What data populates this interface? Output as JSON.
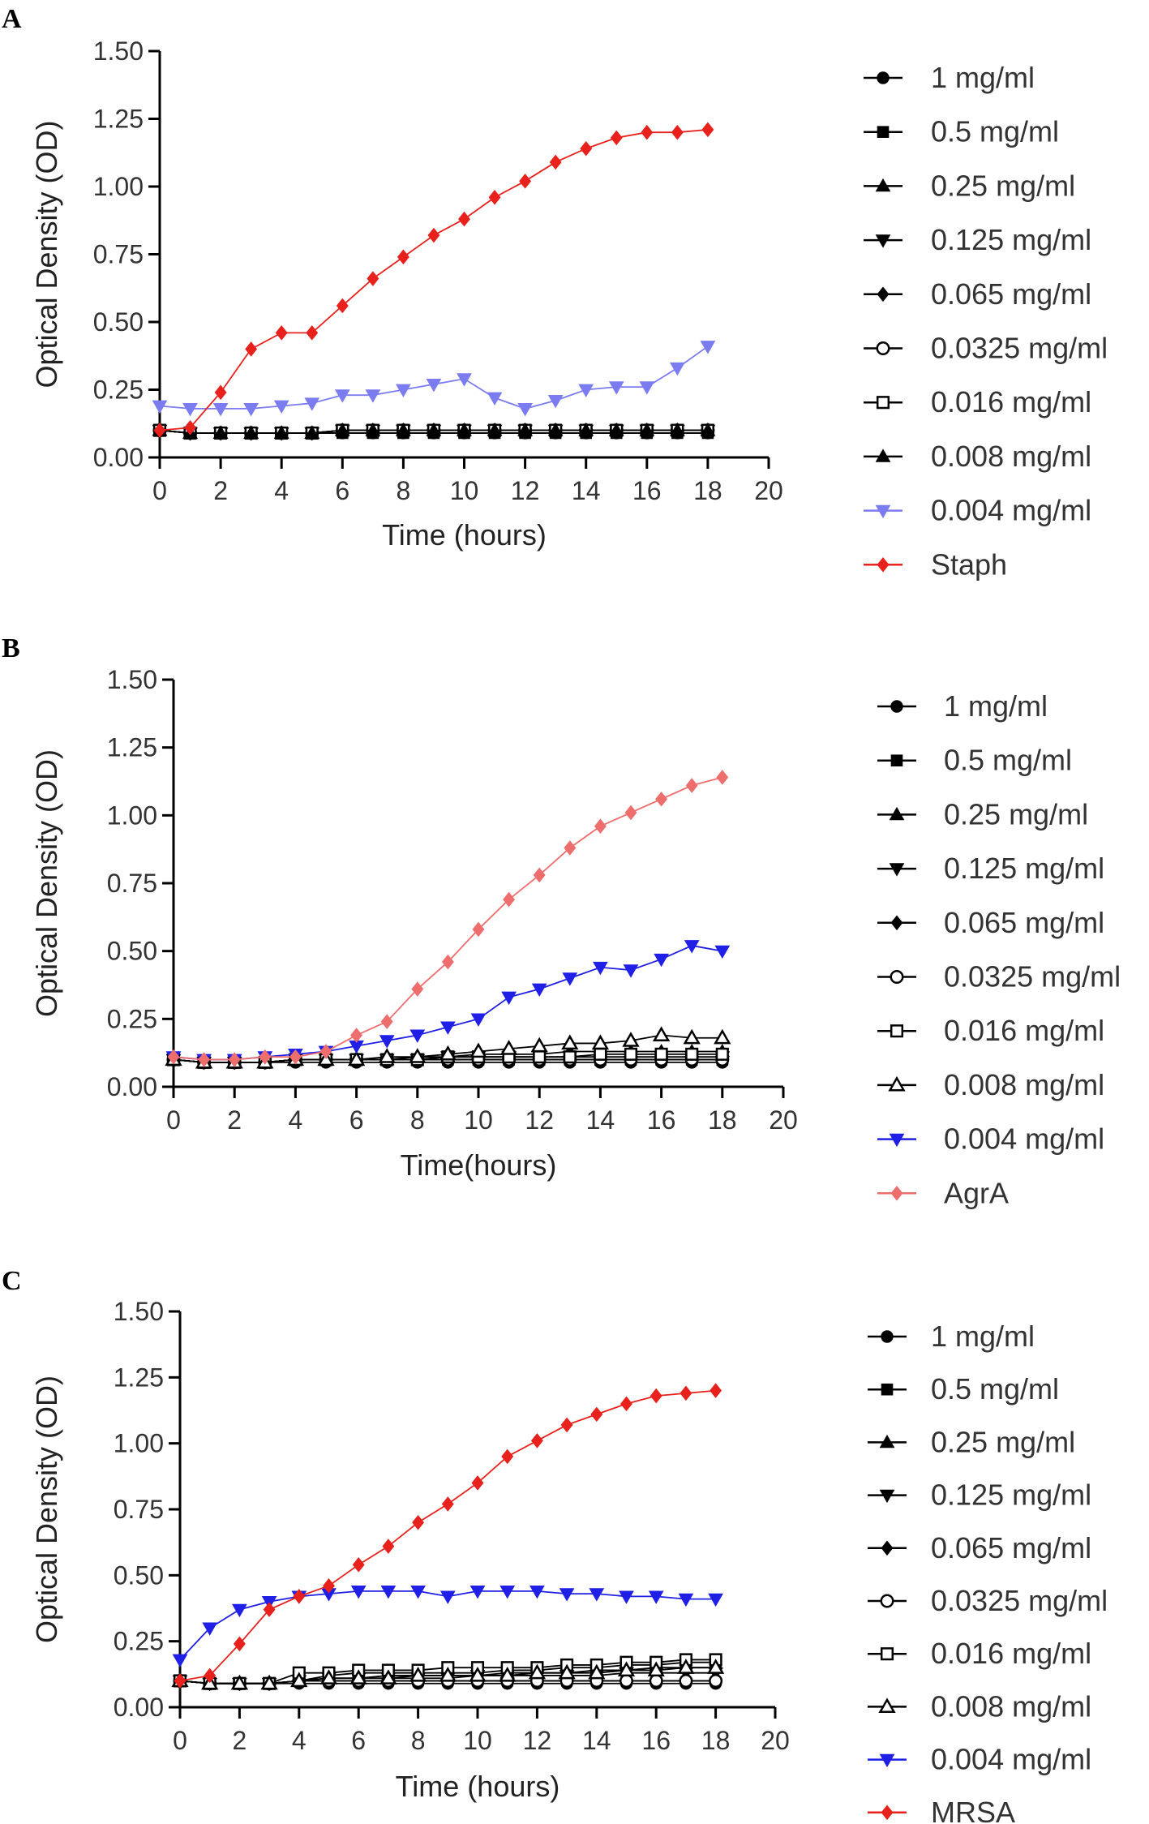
{
  "chart_data": [
    {
      "type": "line",
      "panel": "A",
      "xlabel": "Time (hours)",
      "ylabel": "Optical Density (OD)",
      "xlim": [
        0,
        20
      ],
      "ylim": [
        0,
        1.5
      ],
      "xticks": [
        "0",
        "2",
        "4",
        "6",
        "8",
        "10",
        "12",
        "14",
        "16",
        "18",
        "20"
      ],
      "yticks": [
        "0.00",
        "0.25",
        "0.50",
        "0.75",
        "1.00",
        "1.25",
        "1.50"
      ],
      "x": [
        0,
        1,
        2,
        3,
        4,
        5,
        6,
        7,
        8,
        9,
        10,
        11,
        12,
        13,
        14,
        15,
        16,
        17,
        18
      ],
      "series": [
        {
          "name": "1 mg/ml",
          "marker": "circle",
          "color": "#000000",
          "values": [
            0.1,
            0.09,
            0.09,
            0.09,
            0.09,
            0.09,
            0.09,
            0.09,
            0.09,
            0.09,
            0.09,
            0.09,
            0.09,
            0.09,
            0.09,
            0.09,
            0.09,
            0.09,
            0.09
          ]
        },
        {
          "name": "0.5 mg/ml",
          "marker": "square",
          "color": "#000000",
          "values": [
            0.1,
            0.09,
            0.09,
            0.09,
            0.09,
            0.09,
            0.09,
            0.09,
            0.09,
            0.09,
            0.09,
            0.09,
            0.09,
            0.09,
            0.09,
            0.09,
            0.09,
            0.09,
            0.09
          ]
        },
        {
          "name": "0.25 mg/ml",
          "marker": "triangle-up",
          "color": "#000000",
          "values": [
            0.1,
            0.09,
            0.09,
            0.09,
            0.09,
            0.09,
            0.1,
            0.1,
            0.1,
            0.1,
            0.1,
            0.1,
            0.1,
            0.1,
            0.1,
            0.1,
            0.1,
            0.1,
            0.1
          ]
        },
        {
          "name": "0.125 mg/ml",
          "marker": "triangle-down",
          "color": "#000000",
          "values": [
            0.1,
            0.09,
            0.09,
            0.09,
            0.09,
            0.09,
            0.1,
            0.1,
            0.1,
            0.1,
            0.1,
            0.1,
            0.1,
            0.1,
            0.1,
            0.1,
            0.1,
            0.1,
            0.1
          ]
        },
        {
          "name": "0.065 mg/ml",
          "marker": "diamond",
          "color": "#000000",
          "values": [
            0.1,
            0.09,
            0.09,
            0.09,
            0.09,
            0.09,
            0.1,
            0.1,
            0.1,
            0.1,
            0.1,
            0.1,
            0.1,
            0.1,
            0.1,
            0.1,
            0.1,
            0.1,
            0.1
          ]
        },
        {
          "name": "0.0325 mg/ml",
          "marker": "circle-open",
          "color": "#000000",
          "values": [
            0.1,
            0.09,
            0.09,
            0.09,
            0.09,
            0.09,
            0.1,
            0.1,
            0.1,
            0.1,
            0.1,
            0.1,
            0.1,
            0.1,
            0.1,
            0.1,
            0.1,
            0.1,
            0.1
          ]
        },
        {
          "name": "0.016 mg/ml",
          "marker": "square-open",
          "color": "#000000",
          "values": [
            0.1,
            0.09,
            0.09,
            0.09,
            0.09,
            0.09,
            0.1,
            0.1,
            0.1,
            0.1,
            0.1,
            0.1,
            0.1,
            0.1,
            0.1,
            0.1,
            0.1,
            0.1,
            0.1
          ]
        },
        {
          "name": "0.008 mg/ml",
          "marker": "triangle-up",
          "color": "#000000",
          "values": [
            0.1,
            0.09,
            0.09,
            0.09,
            0.09,
            0.09,
            0.1,
            0.1,
            0.1,
            0.1,
            0.1,
            0.1,
            0.1,
            0.1,
            0.1,
            0.1,
            0.1,
            0.1,
            0.1
          ]
        },
        {
          "name": "0.004 mg/ml",
          "marker": "triangle-down",
          "color": "#7b7cf0",
          "values": [
            0.19,
            0.18,
            0.18,
            0.18,
            0.19,
            0.2,
            0.23,
            0.23,
            0.25,
            0.27,
            0.29,
            0.22,
            0.18,
            0.21,
            0.25,
            0.26,
            0.26,
            0.33,
            0.41
          ]
        },
        {
          "name": "Staph",
          "marker": "diamond",
          "color": "#e8211d",
          "values": [
            0.1,
            0.11,
            0.24,
            0.4,
            0.46,
            0.46,
            0.56,
            0.66,
            0.74,
            0.82,
            0.88,
            0.96,
            1.02,
            1.09,
            1.14,
            1.18,
            1.2,
            1.2,
            1.21
          ]
        }
      ]
    },
    {
      "type": "line",
      "panel": "B",
      "xlabel": "Time(hours)",
      "ylabel": "Optical Density (OD)",
      "xlim": [
        0,
        20
      ],
      "ylim": [
        0,
        1.5
      ],
      "xticks": [
        "0",
        "2",
        "4",
        "6",
        "8",
        "10",
        "12",
        "14",
        "16",
        "18",
        "20"
      ],
      "yticks": [
        "0.00",
        "0.25",
        "0.50",
        "0.75",
        "1.00",
        "1.25",
        "1.50"
      ],
      "x": [
        0,
        1,
        2,
        3,
        4,
        5,
        6,
        7,
        8,
        9,
        10,
        11,
        12,
        13,
        14,
        15,
        16,
        17,
        18
      ],
      "series": [
        {
          "name": "1 mg/ml",
          "marker": "circle",
          "color": "#000000",
          "values": [
            0.1,
            0.09,
            0.09,
            0.09,
            0.09,
            0.09,
            0.09,
            0.09,
            0.09,
            0.09,
            0.09,
            0.09,
            0.09,
            0.09,
            0.09,
            0.09,
            0.09,
            0.09,
            0.09
          ]
        },
        {
          "name": "0.5 mg/ml",
          "marker": "square",
          "color": "#000000",
          "values": [
            0.1,
            0.09,
            0.09,
            0.09,
            0.1,
            0.1,
            0.1,
            0.1,
            0.1,
            0.1,
            0.1,
            0.1,
            0.1,
            0.1,
            0.1,
            0.1,
            0.1,
            0.1,
            0.1
          ]
        },
        {
          "name": "0.25 mg/ml",
          "marker": "triangle-up",
          "color": "#000000",
          "values": [
            0.1,
            0.09,
            0.09,
            0.09,
            0.1,
            0.1,
            0.1,
            0.1,
            0.11,
            0.11,
            0.12,
            0.12,
            0.12,
            0.13,
            0.13,
            0.13,
            0.13,
            0.13,
            0.13
          ]
        },
        {
          "name": "0.125 mg/ml",
          "marker": "triangle-down",
          "color": "#000000",
          "values": [
            0.1,
            0.09,
            0.09,
            0.09,
            0.1,
            0.1,
            0.1,
            0.1,
            0.1,
            0.11,
            0.11,
            0.11,
            0.11,
            0.11,
            0.11,
            0.11,
            0.11,
            0.11,
            0.11
          ]
        },
        {
          "name": "0.065 mg/ml",
          "marker": "diamond",
          "color": "#000000",
          "values": [
            0.1,
            0.09,
            0.09,
            0.09,
            0.1,
            0.1,
            0.1,
            0.1,
            0.1,
            0.1,
            0.1,
            0.1,
            0.1,
            0.1,
            0.1,
            0.1,
            0.1,
            0.1,
            0.1
          ]
        },
        {
          "name": "0.0325 mg/ml",
          "marker": "circle-open",
          "color": "#000000",
          "values": [
            0.1,
            0.09,
            0.09,
            0.09,
            0.1,
            0.1,
            0.1,
            0.1,
            0.1,
            0.1,
            0.1,
            0.1,
            0.1,
            0.1,
            0.1,
            0.1,
            0.1,
            0.1,
            0.1
          ]
        },
        {
          "name": "0.016 mg/ml",
          "marker": "square-open",
          "color": "#000000",
          "values": [
            0.1,
            0.09,
            0.09,
            0.09,
            0.1,
            0.1,
            0.1,
            0.1,
            0.1,
            0.11,
            0.11,
            0.11,
            0.11,
            0.11,
            0.12,
            0.12,
            0.12,
            0.12,
            0.12
          ]
        },
        {
          "name": "0.008 mg/ml",
          "marker": "triangle-up-open",
          "color": "#000000",
          "values": [
            0.1,
            0.09,
            0.09,
            0.09,
            0.1,
            0.1,
            0.1,
            0.11,
            0.11,
            0.12,
            0.13,
            0.14,
            0.15,
            0.16,
            0.16,
            0.17,
            0.19,
            0.18,
            0.18
          ]
        },
        {
          "name": "0.004 mg/ml",
          "marker": "triangle-down",
          "color": "#1f1fe6",
          "values": [
            0.11,
            0.1,
            0.1,
            0.11,
            0.12,
            0.13,
            0.15,
            0.17,
            0.19,
            0.22,
            0.25,
            0.33,
            0.36,
            0.4,
            0.44,
            0.43,
            0.47,
            0.52,
            0.5
          ]
        },
        {
          "name": "AgrA",
          "marker": "diamond",
          "color": "#ee6e6e",
          "values": [
            0.11,
            0.1,
            0.1,
            0.11,
            0.11,
            0.13,
            0.19,
            0.24,
            0.36,
            0.46,
            0.58,
            0.69,
            0.78,
            0.88,
            0.96,
            1.01,
            1.06,
            1.11,
            1.14
          ]
        }
      ]
    },
    {
      "type": "line",
      "panel": "C",
      "xlabel": "Time (hours)",
      "ylabel": "Optical Density (OD)",
      "xlim": [
        0,
        20
      ],
      "ylim": [
        0,
        1.5
      ],
      "xticks": [
        "0",
        "2",
        "4",
        "6",
        "8",
        "10",
        "12",
        "14",
        "16",
        "18",
        "20"
      ],
      "yticks": [
        "0.00",
        "0.25",
        "0.50",
        "0.75",
        "1.00",
        "1.25",
        "1.50"
      ],
      "x": [
        0,
        1,
        2,
        3,
        4,
        5,
        6,
        7,
        8,
        9,
        10,
        11,
        12,
        13,
        14,
        15,
        16,
        17,
        18
      ],
      "series": [
        {
          "name": "1 mg/ml",
          "marker": "circle",
          "color": "#000000",
          "values": [
            0.1,
            0.09,
            0.09,
            0.09,
            0.09,
            0.09,
            0.09,
            0.09,
            0.09,
            0.09,
            0.09,
            0.09,
            0.09,
            0.09,
            0.09,
            0.09,
            0.09,
            0.09,
            0.09
          ]
        },
        {
          "name": "0.5 mg/ml",
          "marker": "square",
          "color": "#000000",
          "values": [
            0.1,
            0.09,
            0.09,
            0.09,
            0.1,
            0.12,
            0.13,
            0.13,
            0.13,
            0.13,
            0.13,
            0.14,
            0.14,
            0.15,
            0.15,
            0.16,
            0.16,
            0.17,
            0.17
          ]
        },
        {
          "name": "0.25 mg/ml",
          "marker": "triangle-up",
          "color": "#000000",
          "values": [
            0.1,
            0.09,
            0.09,
            0.09,
            0.1,
            0.11,
            0.11,
            0.12,
            0.12,
            0.12,
            0.12,
            0.13,
            0.13,
            0.13,
            0.14,
            0.14,
            0.15,
            0.15,
            0.15
          ]
        },
        {
          "name": "0.125 mg/ml",
          "marker": "triangle-down",
          "color": "#000000",
          "values": [
            0.1,
            0.09,
            0.09,
            0.09,
            0.1,
            0.11,
            0.11,
            0.11,
            0.11,
            0.11,
            0.12,
            0.12,
            0.12,
            0.12,
            0.12,
            0.13,
            0.13,
            0.13,
            0.13
          ]
        },
        {
          "name": "0.065 mg/ml",
          "marker": "diamond",
          "color": "#000000",
          "values": [
            0.1,
            0.09,
            0.09,
            0.09,
            0.1,
            0.1,
            0.1,
            0.1,
            0.1,
            0.1,
            0.1,
            0.1,
            0.1,
            0.1,
            0.1,
            0.1,
            0.1,
            0.1,
            0.1
          ]
        },
        {
          "name": "0.0325 mg/ml",
          "marker": "circle-open",
          "color": "#000000",
          "values": [
            0.1,
            0.09,
            0.09,
            0.09,
            0.1,
            0.1,
            0.1,
            0.1,
            0.1,
            0.1,
            0.1,
            0.1,
            0.1,
            0.1,
            0.1,
            0.1,
            0.1,
            0.1,
            0.1
          ]
        },
        {
          "name": "0.016 mg/ml",
          "marker": "square-open",
          "color": "#000000",
          "values": [
            0.1,
            0.09,
            0.09,
            0.09,
            0.13,
            0.13,
            0.14,
            0.14,
            0.14,
            0.15,
            0.15,
            0.15,
            0.15,
            0.16,
            0.16,
            0.17,
            0.17,
            0.18,
            0.18
          ]
        },
        {
          "name": "0.008 mg/ml",
          "marker": "triangle-up-open",
          "color": "#000000",
          "values": [
            0.1,
            0.09,
            0.09,
            0.09,
            0.1,
            0.11,
            0.11,
            0.11,
            0.12,
            0.12,
            0.12,
            0.12,
            0.13,
            0.13,
            0.13,
            0.14,
            0.14,
            0.15,
            0.15
          ]
        },
        {
          "name": "0.004 mg/ml",
          "marker": "triangle-down",
          "color": "#1f1fe6",
          "values": [
            0.18,
            0.3,
            0.37,
            0.4,
            0.42,
            0.43,
            0.44,
            0.44,
            0.44,
            0.42,
            0.44,
            0.44,
            0.44,
            0.43,
            0.43,
            0.42,
            0.42,
            0.41,
            0.41
          ]
        },
        {
          "name": "MRSA",
          "marker": "diamond",
          "color": "#e8211d",
          "values": [
            0.1,
            0.12,
            0.24,
            0.37,
            0.42,
            0.46,
            0.54,
            0.61,
            0.7,
            0.77,
            0.85,
            0.95,
            1.01,
            1.07,
            1.11,
            1.15,
            1.18,
            1.19,
            1.2
          ]
        }
      ]
    }
  ]
}
